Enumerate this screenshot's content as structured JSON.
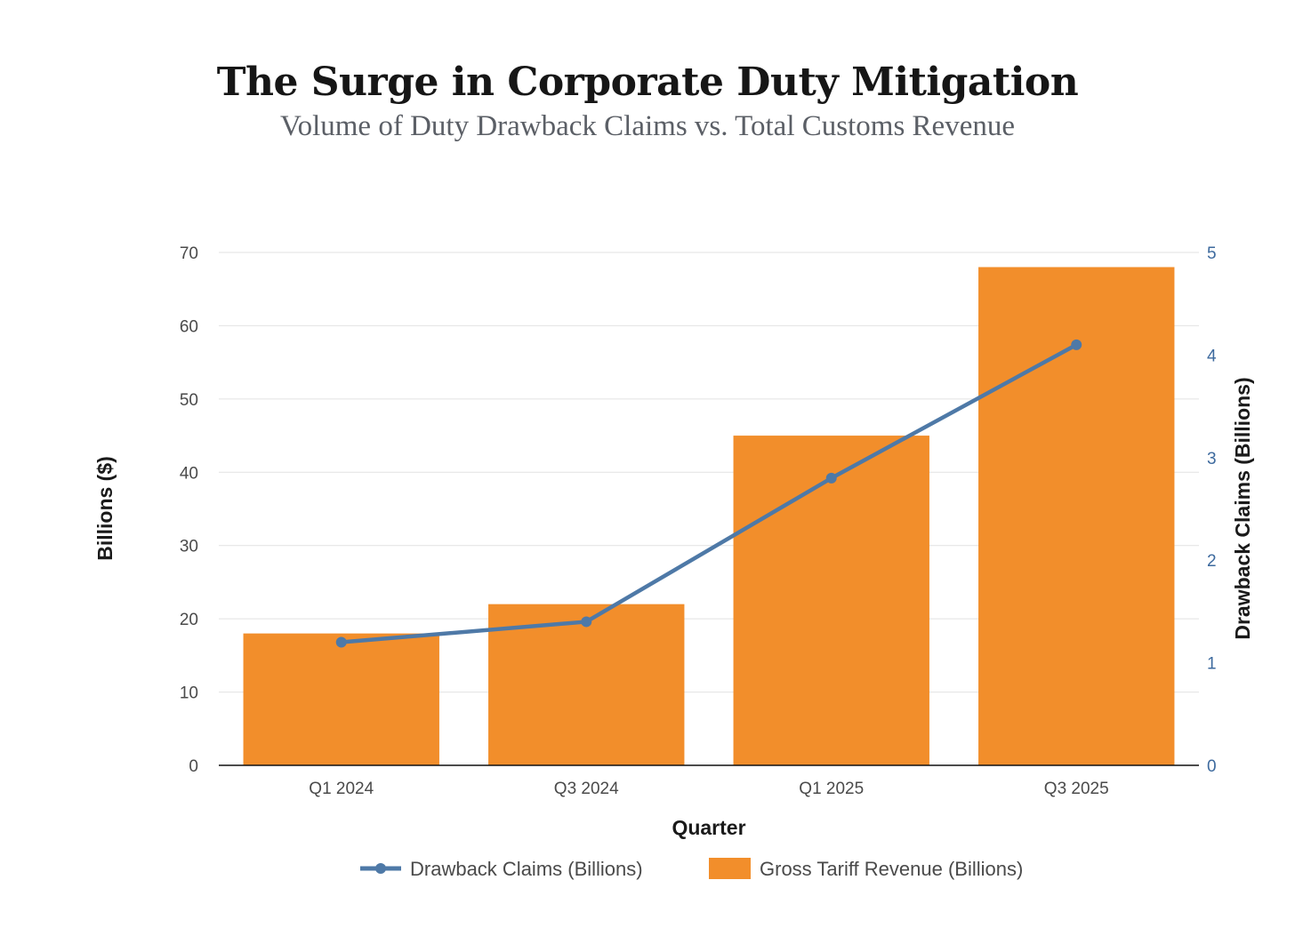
{
  "chart_data": {
    "type": "bar",
    "title": "The Surge in Corporate Duty Mitigation",
    "subtitle": "Volume of Duty Drawback Claims vs. Total Customs Revenue",
    "categories": [
      "Q1 2024",
      "Q3 2024",
      "Q1 2025",
      "Q3 2025"
    ],
    "series": [
      {
        "name": "Gross Tariff Revenue (Billions)",
        "type": "bar",
        "axis": "left",
        "color": "#f28e2b",
        "values": [
          18,
          22,
          45,
          68
        ]
      },
      {
        "name": "Drawback Claims (Billions)",
        "type": "line",
        "axis": "right",
        "color": "#4e79a7",
        "values": [
          1.2,
          1.4,
          2.8,
          4.1
        ]
      }
    ],
    "xlabel": "Quarter",
    "ylabel": "Billions ($)",
    "y2label": "Drawback Claims (Billions)",
    "ylim": [
      0,
      70
    ],
    "y2lim": [
      0,
      5
    ],
    "yticks": [
      0,
      10,
      20,
      30,
      40,
      50,
      60,
      70
    ],
    "y2ticks": [
      0,
      1,
      2,
      3,
      4,
      5
    ],
    "grid": true,
    "legend": {
      "position": "bottom",
      "entries": [
        "Drawback Claims (Billions)",
        "Gross Tariff Revenue (Billions)"
      ]
    }
  }
}
